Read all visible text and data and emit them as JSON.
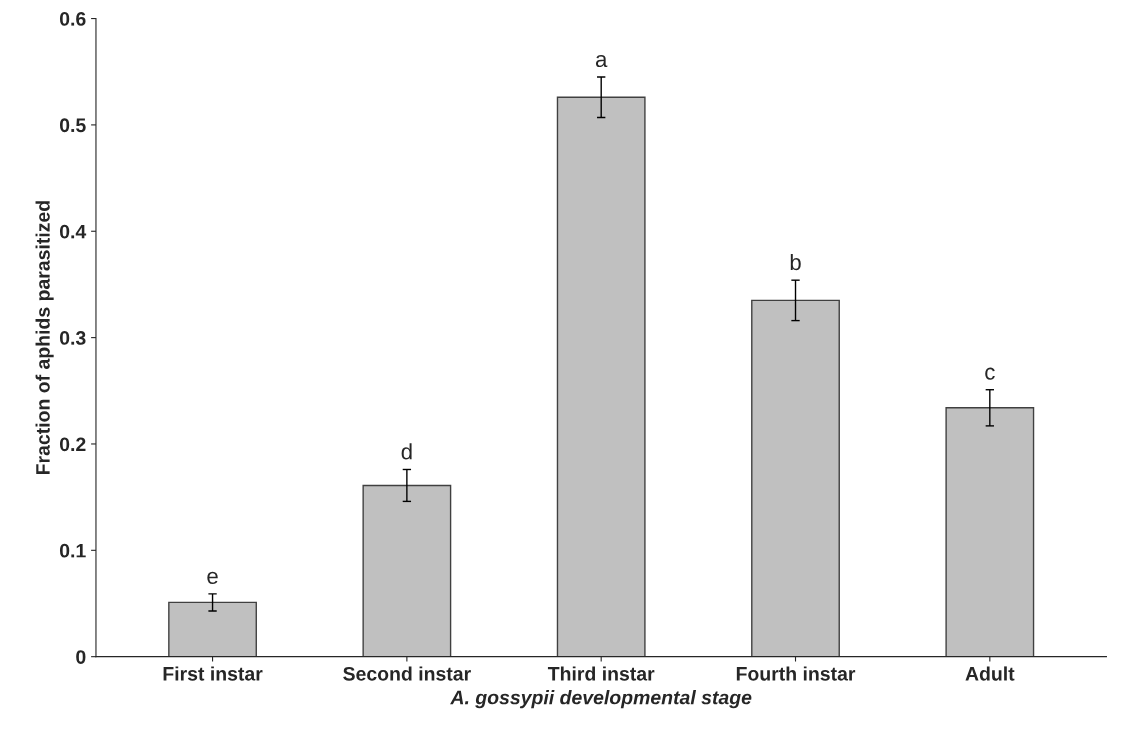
{
  "chart_data": {
    "type": "bar",
    "categories": [
      "First instar",
      "Second instar",
      "Third instar",
      "Fourth instar",
      "Adult"
    ],
    "values": [
      0.051,
      0.161,
      0.526,
      0.335,
      0.234
    ],
    "errors": [
      0.008,
      0.015,
      0.019,
      0.019,
      0.017
    ],
    "color": "#c0c0c0",
    "xlabel": "A. gossypii developmental stage",
    "ylabel": "Fraction of aphids parasitized",
    "ylim": [
      0,
      0.6
    ],
    "yticks": [
      0,
      0.1,
      0.2,
      0.3,
      0.4,
      0.5,
      0.6
    ],
    "annotations": [
      {
        "text": "e",
        "x": "First instar",
        "y": 0.059
      },
      {
        "text": "d",
        "x": "Second instar",
        "y": 0.176
      },
      {
        "text": "a",
        "x": "Third instar",
        "y": 0.545
      },
      {
        "text": "b",
        "x": "Fourth instar",
        "y": 0.354
      },
      {
        "text": "c",
        "x": "Adult",
        "y": 0.251
      }
    ],
    "grid": false,
    "legend": false
  }
}
